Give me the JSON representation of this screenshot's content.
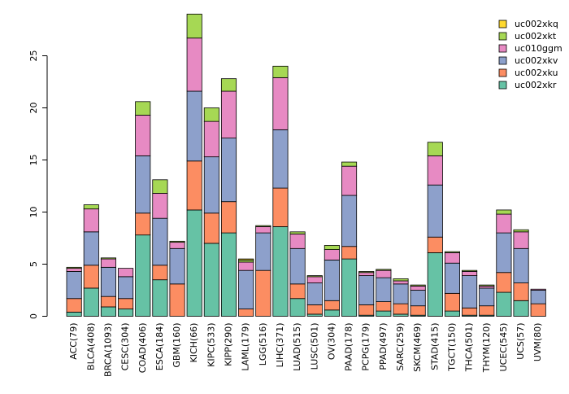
{
  "chart_data": {
    "type": "bar",
    "stacked": true,
    "title": "",
    "xlabel": "",
    "ylabel": "",
    "ylim": [
      0,
      29.2
    ],
    "yticks": [
      0,
      5,
      10,
      15,
      20,
      25
    ],
    "legend_position": "top-right",
    "categories": [
      "ACC(79)",
      "BLCA(408)",
      "BRCA(1093)",
      "CESC(304)",
      "COAD(406)",
      "ESCA(184)",
      "GBM(160)",
      "KICH(66)",
      "KIPC(533)",
      "KIPP(290)",
      "LAML(179)",
      "LGG(516)",
      "LIHC(371)",
      "LUAD(515)",
      "LUSC(501)",
      "OV(304)",
      "PAAD(178)",
      "PCPG(179)",
      "PPAD(497)",
      "SARC(259)",
      "SKCM(469)",
      "STAD(415)",
      "TGCT(150)",
      "THCA(501)",
      "THYM(120)",
      "UCEC(545)",
      "UCS(57)",
      "UVM(80)"
    ],
    "series": [
      {
        "name": "uc002xkr",
        "color": "#66c2a5",
        "values": [
          0.4,
          2.7,
          0.9,
          0.7,
          7.8,
          3.5,
          0.0,
          10.2,
          7.0,
          8.0,
          0.0,
          0.0,
          8.6,
          1.7,
          0.2,
          0.6,
          5.5,
          0.1,
          0.5,
          0.2,
          0.1,
          6.1,
          0.5,
          0.1,
          0.1,
          2.3,
          1.5,
          0.0
        ]
      },
      {
        "name": "uc002xku",
        "color": "#fc8d62",
        "values": [
          1.3,
          2.2,
          1.0,
          1.0,
          2.1,
          1.4,
          3.1,
          4.7,
          2.9,
          3.0,
          0.7,
          4.4,
          3.7,
          1.4,
          0.9,
          0.9,
          1.2,
          1.0,
          0.9,
          1.0,
          0.9,
          1.5,
          1.7,
          0.7,
          0.9,
          1.9,
          1.7,
          1.2
        ]
      },
      {
        "name": "uc002xkv",
        "color": "#8da0cb",
        "values": [
          2.6,
          3.2,
          2.8,
          2.1,
          5.5,
          4.5,
          3.4,
          6.7,
          5.4,
          6.1,
          3.7,
          3.6,
          5.6,
          3.4,
          2.1,
          3.9,
          4.9,
          2.8,
          2.3,
          1.9,
          1.5,
          5.0,
          2.9,
          3.1,
          1.7,
          3.8,
          3.3,
          1.3
        ]
      },
      {
        "name": "uc010ggm",
        "color": "#e78ac3",
        "values": [
          0.3,
          2.2,
          0.8,
          0.8,
          3.9,
          2.4,
          0.6,
          5.1,
          3.4,
          4.5,
          0.8,
          0.6,
          5.0,
          1.4,
          0.6,
          1.0,
          2.8,
          0.3,
          0.7,
          0.3,
          0.4,
          2.8,
          1.0,
          0.4,
          0.2,
          1.8,
          1.6,
          0.1
        ]
      },
      {
        "name": "uc002xkt",
        "color": "#a6d854",
        "values": [
          0.1,
          0.4,
          0.1,
          0.0,
          1.3,
          1.3,
          0.1,
          2.3,
          1.3,
          1.2,
          0.2,
          0.1,
          1.1,
          0.2,
          0.1,
          0.4,
          0.4,
          0.1,
          0.1,
          0.2,
          0.1,
          1.3,
          0.1,
          0.1,
          0.1,
          0.4,
          0.2,
          0.0
        ]
      },
      {
        "name": "uc002xkq",
        "color": "#ffd92f",
        "values": [
          0.0,
          0.0,
          0.0,
          0.0,
          0.0,
          0.0,
          0.0,
          0.0,
          0.0,
          0.0,
          0.1,
          0.0,
          0.0,
          0.0,
          0.0,
          0.0,
          0.0,
          0.0,
          0.0,
          0.0,
          0.0,
          0.0,
          0.0,
          0.0,
          0.0,
          0.0,
          0.0,
          0.0
        ]
      }
    ]
  }
}
